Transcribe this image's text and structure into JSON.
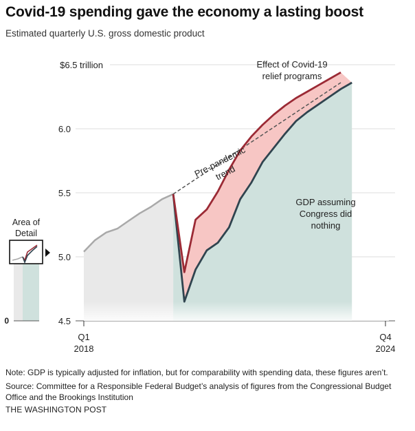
{
  "headline": "Covid-19 spending gave the economy a lasting boost",
  "subtitle": "Estimated quarterly U.S. gross domestic product",
  "note": "Note: GDP is typically adjusted for inflation, but for comparability with spending data, these figures aren’t.",
  "source": "Source: Committee for a Responsible Federal Budget’s analysis of figures from the Congressional Budget Office and the Brookings Institution",
  "credit": "THE WASHINGTON POST",
  "inset": {
    "label_line1": "Area of",
    "label_line2": "Detail",
    "zero_label": "0"
  },
  "colors": {
    "actual": "#9b2a35",
    "actual_fill": "#f7c6c4",
    "no_aid": "#30444f",
    "no_aid_fill": "#cfe1dd",
    "pre": "#a9a9a9",
    "pre_fill": "#e9e9e9",
    "trend": "#555555"
  },
  "chart_data": {
    "type": "line",
    "ylim": [
      4.5,
      6.5
    ],
    "yticks": [
      {
        "value": 6.5,
        "label": "$6.5 trillion"
      },
      {
        "value": 6.0,
        "label": "6.0"
      },
      {
        "value": 5.5,
        "label": "5.5"
      },
      {
        "value": 5.0,
        "label": "5.0"
      },
      {
        "value": 4.5,
        "label": "4.5"
      }
    ],
    "x_start": {
      "line1": "Q1",
      "line2": "2018"
    },
    "x_end": {
      "line1": "Q4",
      "line2": "2024"
    },
    "quarters": [
      "2018 Q1",
      "2018 Q2",
      "2018 Q3",
      "2018 Q4",
      "2019 Q1",
      "2019 Q2",
      "2019 Q3",
      "2019 Q4",
      "2020 Q1",
      "2020 Q2",
      "2020 Q3",
      "2020 Q4",
      "2021 Q1",
      "2021 Q2",
      "2021 Q3",
      "2021 Q4",
      "2022 Q1",
      "2022 Q2",
      "2022 Q3",
      "2022 Q4",
      "2023 Q1",
      "2023 Q2",
      "2023 Q3",
      "2023 Q4",
      "2024 Q1",
      "2024 Q2",
      "2024 Q3",
      "2024 Q4"
    ],
    "series": [
      {
        "key": "pre",
        "values": [
          5.04,
          5.13,
          5.19,
          5.22,
          5.28,
          5.34,
          5.39,
          5.45,
          5.49
        ]
      },
      {
        "key": "actual",
        "values": [
          5.49,
          4.88,
          5.29,
          5.37,
          5.51,
          5.68,
          5.83,
          5.94,
          6.03,
          6.11,
          6.18,
          6.24,
          6.29,
          6.34,
          6.39,
          6.44
        ]
      },
      {
        "key": "no_aid",
        "values": [
          5.49,
          4.65,
          4.9,
          5.05,
          5.11,
          5.23,
          5.45,
          5.58,
          5.74,
          5.85,
          5.96,
          6.06,
          6.13,
          6.19,
          6.25,
          6.31,
          6.36
        ]
      },
      {
        "key": "trend",
        "values": [
          5.49,
          5.548,
          5.606,
          5.664,
          5.722,
          5.78,
          5.838,
          5.896,
          5.954,
          6.012,
          6.07,
          6.128,
          6.186,
          6.244,
          6.302,
          6.36
        ]
      }
    ],
    "pandemic_start_index": 8,
    "annotations": {
      "relief_line1": "Effect of Covid-19",
      "relief_line2": "relief programs",
      "trend_line1": "Pre-pandemic",
      "trend_line2": "trend",
      "no_aid_line1": "GDP assuming",
      "no_aid_line2": "Congress did",
      "no_aid_line3": "nothing"
    }
  }
}
